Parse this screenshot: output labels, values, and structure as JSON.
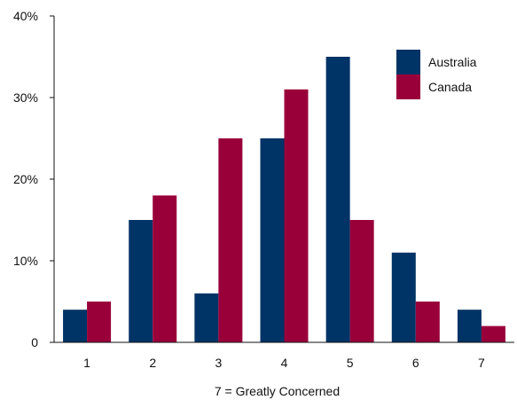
{
  "chart_data": {
    "type": "bar",
    "categories": [
      "1",
      "2",
      "3",
      "4",
      "5",
      "6",
      "7"
    ],
    "series": [
      {
        "name": "Australia",
        "values": [
          4,
          15,
          6,
          25,
          35,
          11,
          4
        ],
        "color": "#003366"
      },
      {
        "name": "Canada",
        "values": [
          5,
          18,
          25,
          31,
          15,
          5,
          2
        ],
        "color": "#99003a"
      }
    ],
    "title": "",
    "xlabel": "7 = Greatly Concerned",
    "ylabel": "",
    "ylim": [
      0,
      40
    ],
    "yticks": [
      0,
      10,
      20,
      30,
      40
    ],
    "ytick_labels": [
      "0",
      "10%",
      "20%",
      "30%",
      "40%"
    ],
    "legend_position": "top-right",
    "grid": false
  }
}
